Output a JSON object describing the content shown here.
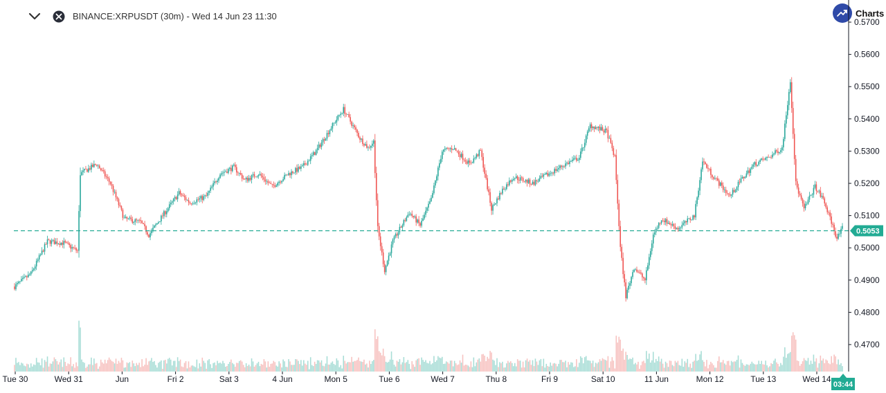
{
  "header": {
    "symbol_label": "BINANCE:XRPUSDT (30m) - Wed 14 Jun 23 11:30",
    "brand_label": "Charts",
    "collapse_icon": "chevron-down-icon",
    "close_icon": "close-circle-icon",
    "brand_icon": "trending-up-logo-icon"
  },
  "colors": {
    "up": "#26a69a",
    "down": "#ef5350",
    "volume_up": "#a8ddd6",
    "volume_down": "#f7c2c0",
    "accent": "#22ab94",
    "axis": "#131722"
  },
  "chart_data": {
    "type": "candlestick",
    "symbol": "XRPUSDT",
    "exchange": "BINANCE",
    "interval": "30m",
    "ylim": [
      0.4635,
      0.5732
    ],
    "y_ticks": [
      "0.5700",
      "0.5600",
      "0.5500",
      "0.5400",
      "0.5300",
      "0.5200",
      "0.5100",
      "0.5000",
      "0.4900",
      "0.4800",
      "0.4700"
    ],
    "x_ticks": [
      "Tue 30",
      "Wed 31",
      "Jun",
      "Fri 2",
      "Sat 3",
      "4 Jun",
      "Mon 5",
      "Tue 6",
      "Wed 7",
      "Thu 8",
      "Fri 9",
      "Sat 10",
      "11 Jun",
      "Mon 12",
      "Tue 13",
      "Wed 14"
    ],
    "last_price": "0.5053",
    "last_price_value": 0.5053,
    "countdown": "03:44",
    "price_path": [
      [
        0,
        0.488
      ],
      [
        12,
        0.492
      ],
      [
        24,
        0.502
      ],
      [
        36,
        0.5015
      ],
      [
        46,
        0.499
      ],
      [
        48,
        0.523
      ],
      [
        60,
        0.526
      ],
      [
        70,
        0.52
      ],
      [
        80,
        0.509
      ],
      [
        92,
        0.508
      ],
      [
        98,
        0.504
      ],
      [
        108,
        0.51
      ],
      [
        120,
        0.517
      ],
      [
        128,
        0.514
      ],
      [
        140,
        0.516
      ],
      [
        150,
        0.523
      ],
      [
        160,
        0.525
      ],
      [
        168,
        0.521
      ],
      [
        178,
        0.523
      ],
      [
        188,
        0.519
      ],
      [
        200,
        0.523
      ],
      [
        210,
        0.525
      ],
      [
        220,
        0.53
      ],
      [
        232,
        0.538
      ],
      [
        240,
        0.543
      ],
      [
        252,
        0.534
      ],
      [
        258,
        0.531
      ],
      [
        262,
        0.533
      ],
      [
        265,
        0.506
      ],
      [
        270,
        0.493
      ],
      [
        276,
        0.502
      ],
      [
        288,
        0.511
      ],
      [
        296,
        0.507
      ],
      [
        304,
        0.515
      ],
      [
        312,
        0.53
      ],
      [
        320,
        0.531
      ],
      [
        332,
        0.526
      ],
      [
        340,
        0.53
      ],
      [
        348,
        0.512
      ],
      [
        356,
        0.518
      ],
      [
        364,
        0.522
      ],
      [
        378,
        0.52
      ],
      [
        390,
        0.523
      ],
      [
        402,
        0.526
      ],
      [
        412,
        0.528
      ],
      [
        420,
        0.538
      ],
      [
        432,
        0.536
      ],
      [
        438,
        0.528
      ],
      [
        442,
        0.5
      ],
      [
        446,
        0.485
      ],
      [
        452,
        0.494
      ],
      [
        460,
        0.49
      ],
      [
        466,
        0.504
      ],
      [
        472,
        0.509
      ],
      [
        484,
        0.506
      ],
      [
        496,
        0.51
      ],
      [
        502,
        0.527
      ],
      [
        510,
        0.522
      ],
      [
        522,
        0.516
      ],
      [
        530,
        0.521
      ],
      [
        540,
        0.526
      ],
      [
        550,
        0.528
      ],
      [
        560,
        0.531
      ],
      [
        566,
        0.552
      ],
      [
        570,
        0.52
      ],
      [
        576,
        0.512
      ],
      [
        584,
        0.519
      ],
      [
        590,
        0.515
      ],
      [
        596,
        0.508
      ],
      [
        600,
        0.503
      ],
      [
        604,
        0.506
      ]
    ]
  }
}
